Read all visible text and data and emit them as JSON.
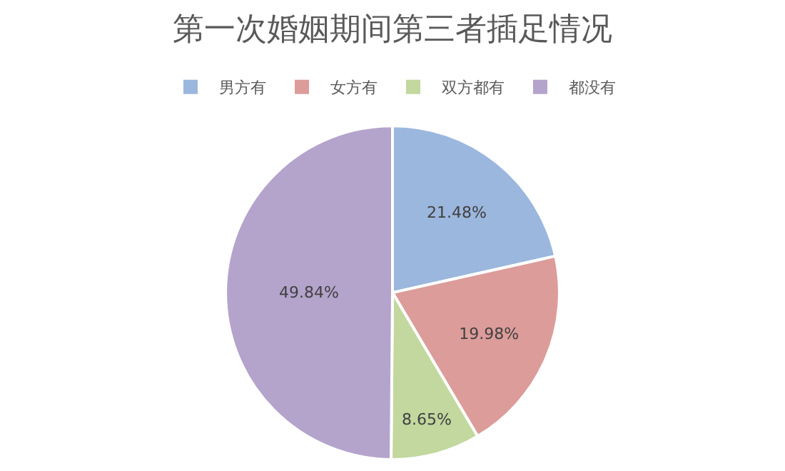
{
  "chart_data": {
    "type": "pie",
    "title": "第一次婚姻期间第三者插足情况",
    "categories": [
      "男方有",
      "女方有",
      "双方都有",
      "都没有"
    ],
    "values": [
      21.48,
      19.98,
      8.65,
      49.84
    ],
    "value_labels": [
      "21.48%",
      "19.98%",
      "8.65%",
      "49.84%"
    ],
    "colors": [
      "#9bb7de",
      "#dc9c9a",
      "#c2d89e",
      "#b4a4cc"
    ],
    "legend": "top"
  }
}
